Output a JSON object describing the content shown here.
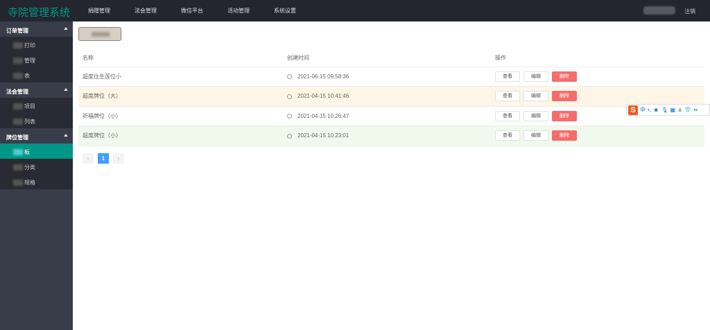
{
  "header": {
    "title": "寺院管理系统",
    "nav": [
      "捐赠管理",
      "法会管理",
      "微信平台",
      "活动管理",
      "系统设置"
    ],
    "logout": "注销"
  },
  "sidebar": [
    {
      "label": "订单管理",
      "items": [
        "打印",
        "管理",
        "表"
      ]
    },
    {
      "label": "法会管理",
      "items": [
        "项目",
        "列表"
      ]
    },
    {
      "label": "牌位管理",
      "items": [
        "板",
        "分类",
        "规格"
      ]
    }
  ],
  "sidebar_active": "板",
  "table": {
    "headers": [
      "名称",
      "创建时间",
      "操作"
    ],
    "rows": [
      {
        "name": "超度往生莲位小",
        "time": "2021-06-15 09:58:36"
      },
      {
        "name": "超度牌位（大）",
        "time": "2021-04-15 10:41:46"
      },
      {
        "name": "祈福牌位（小）",
        "time": "2021-04-15 10:26:47"
      },
      {
        "name": "超度牌位（小）",
        "time": "2021-04-15 10:23:01"
      }
    ],
    "actions": {
      "view": "查看",
      "edit": "编辑",
      "delete": "删除"
    }
  },
  "pagination": {
    "prev": "‹",
    "current": "1",
    "next": "›"
  },
  "ime": {
    "logo": "S",
    "lang": "中"
  },
  "colors": {
    "accent": "#009688",
    "danger": "#f56c6c",
    "primary": "#409eff"
  }
}
